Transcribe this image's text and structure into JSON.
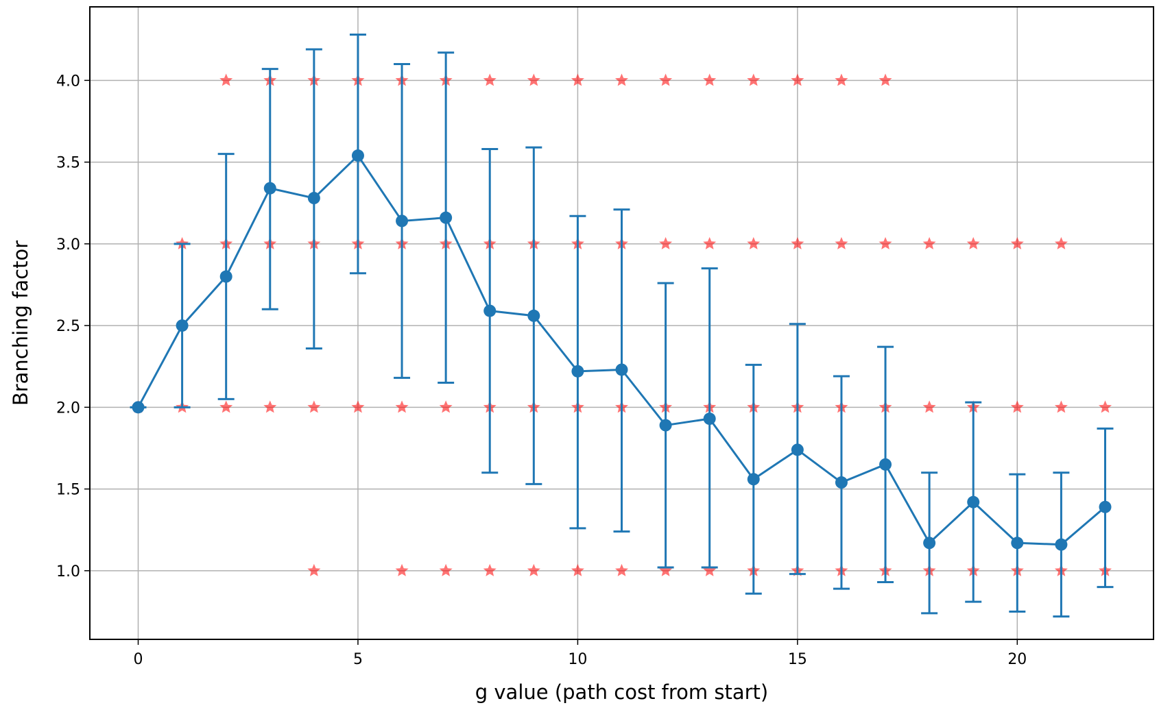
{
  "chart_data": {
    "type": "line",
    "title": "",
    "xlabel": "g value (path cost from start)",
    "ylabel": "Branching factor",
    "xlim": [
      -1.1,
      23.1
    ],
    "ylim": [
      0.58,
      4.45
    ],
    "xticks": [
      0,
      5,
      10,
      15,
      20
    ],
    "xtick_labels": [
      "0",
      "5",
      "10",
      "15",
      "20"
    ],
    "yticks": [
      1.0,
      1.5,
      2.0,
      2.5,
      3.0,
      3.5,
      4.0
    ],
    "ytick_labels": [
      "1.0",
      "1.5",
      "2.0",
      "2.5",
      "3.0",
      "3.5",
      "4.0"
    ],
    "grid": true,
    "legend": "none",
    "colors": {
      "line": "#1f77b4",
      "scatter": "#ff0000",
      "grid": "#b0b0b0"
    },
    "mean_series": {
      "x": [
        0,
        1,
        2,
        3,
        4,
        5,
        6,
        7,
        8,
        9,
        10,
        11,
        12,
        13,
        14,
        15,
        16,
        17,
        18,
        19,
        20,
        21,
        22
      ],
      "y": [
        2.0,
        2.5,
        2.8,
        3.34,
        3.28,
        3.54,
        3.14,
        3.16,
        2.59,
        2.56,
        2.22,
        2.23,
        1.89,
        1.93,
        1.56,
        1.74,
        1.54,
        1.65,
        1.17,
        1.42,
        1.17,
        1.16,
        1.39
      ],
      "err_low": [
        2.0,
        2.0,
        2.05,
        2.6,
        2.36,
        2.82,
        2.18,
        2.15,
        1.6,
        1.53,
        1.26,
        1.24,
        1.02,
        1.02,
        0.86,
        0.98,
        0.89,
        0.93,
        0.74,
        0.81,
        0.75,
        0.72,
        0.9
      ],
      "err_high": [
        2.0,
        3.0,
        3.55,
        4.07,
        4.19,
        4.28,
        4.1,
        4.17,
        3.58,
        3.59,
        3.17,
        3.21,
        2.76,
        2.85,
        2.26,
        2.51,
        2.19,
        2.37,
        1.6,
        2.03,
        1.59,
        1.6,
        1.87
      ]
    },
    "raw_points": [
      {
        "x": 2,
        "values": [
          2,
          3,
          4
        ]
      },
      {
        "x": 3,
        "values": [
          2,
          3,
          4
        ]
      },
      {
        "x": 4,
        "values": [
          1,
          2,
          3,
          4
        ]
      },
      {
        "x": 5,
        "values": [
          2,
          3,
          4
        ]
      },
      {
        "x": 6,
        "values": [
          1,
          2,
          3,
          4
        ]
      },
      {
        "x": 7,
        "values": [
          1,
          2,
          3,
          4
        ]
      },
      {
        "x": 8,
        "values": [
          1,
          2,
          3,
          4
        ]
      },
      {
        "x": 9,
        "values": [
          1,
          2,
          3,
          4
        ]
      },
      {
        "x": 10,
        "values": [
          1,
          2,
          3,
          4
        ]
      },
      {
        "x": 11,
        "values": [
          1,
          2,
          3,
          4
        ]
      },
      {
        "x": 12,
        "values": [
          1,
          2,
          3,
          4
        ]
      },
      {
        "x": 13,
        "values": [
          1,
          2,
          3,
          4
        ]
      },
      {
        "x": 14,
        "values": [
          1,
          2,
          3,
          4
        ]
      },
      {
        "x": 15,
        "values": [
          1,
          2,
          3,
          4
        ]
      },
      {
        "x": 16,
        "values": [
          1,
          2,
          3,
          4
        ]
      },
      {
        "x": 17,
        "values": [
          1,
          2,
          3,
          4
        ]
      },
      {
        "x": 18,
        "values": [
          1,
          2,
          3
        ]
      },
      {
        "x": 19,
        "values": [
          1,
          2,
          3
        ]
      },
      {
        "x": 20,
        "values": [
          1,
          2,
          3
        ]
      },
      {
        "x": 21,
        "values": [
          1,
          2,
          3
        ]
      },
      {
        "x": 22,
        "values": [
          1,
          2
        ]
      },
      {
        "x": 1,
        "values": [
          2,
          3
        ]
      },
      {
        "x": 0,
        "values": [
          2
        ]
      }
    ]
  }
}
